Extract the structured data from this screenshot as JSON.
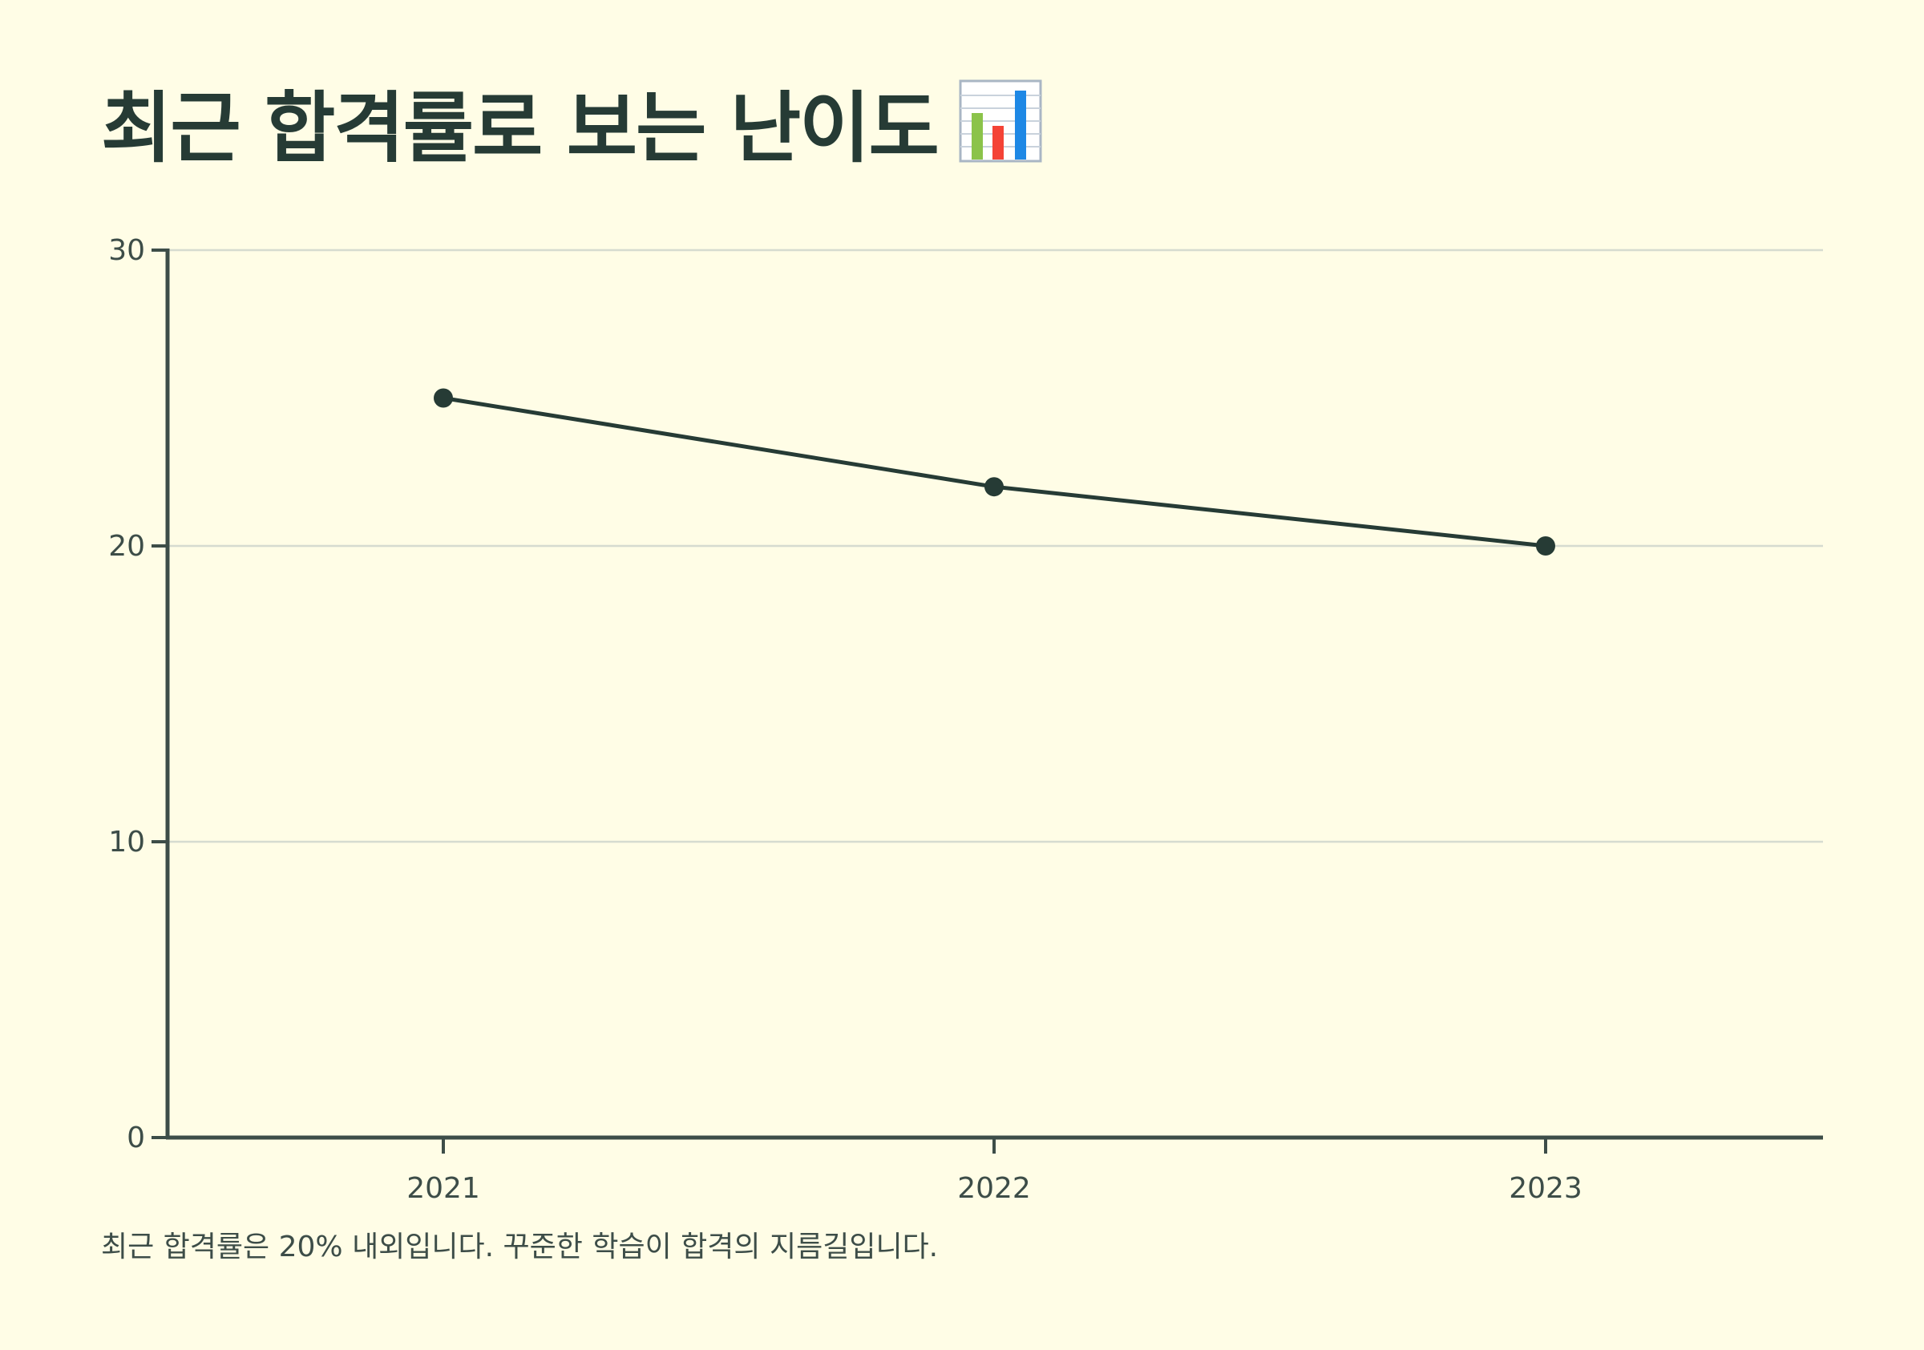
{
  "title": "최근 합격률로 보는 난이도",
  "title_icon": "bar-chart-icon",
  "caption": "최근 합격률은 20% 내외입니다. 꾸준한 학습이 합격의 지름길입니다.",
  "colors": {
    "background": "#fffde6",
    "line": "#263b35",
    "axis": "#3d4d48",
    "grid": "#d6dbd0"
  },
  "chart_data": {
    "type": "line",
    "categories": [
      "2021",
      "2022",
      "2023"
    ],
    "series": [
      {
        "values": [
          25,
          22,
          20
        ]
      }
    ],
    "yticks": [
      0,
      10,
      20,
      30
    ],
    "ylim": [
      0,
      30
    ],
    "grid": true,
    "xlabel": "",
    "ylabel": ""
  }
}
